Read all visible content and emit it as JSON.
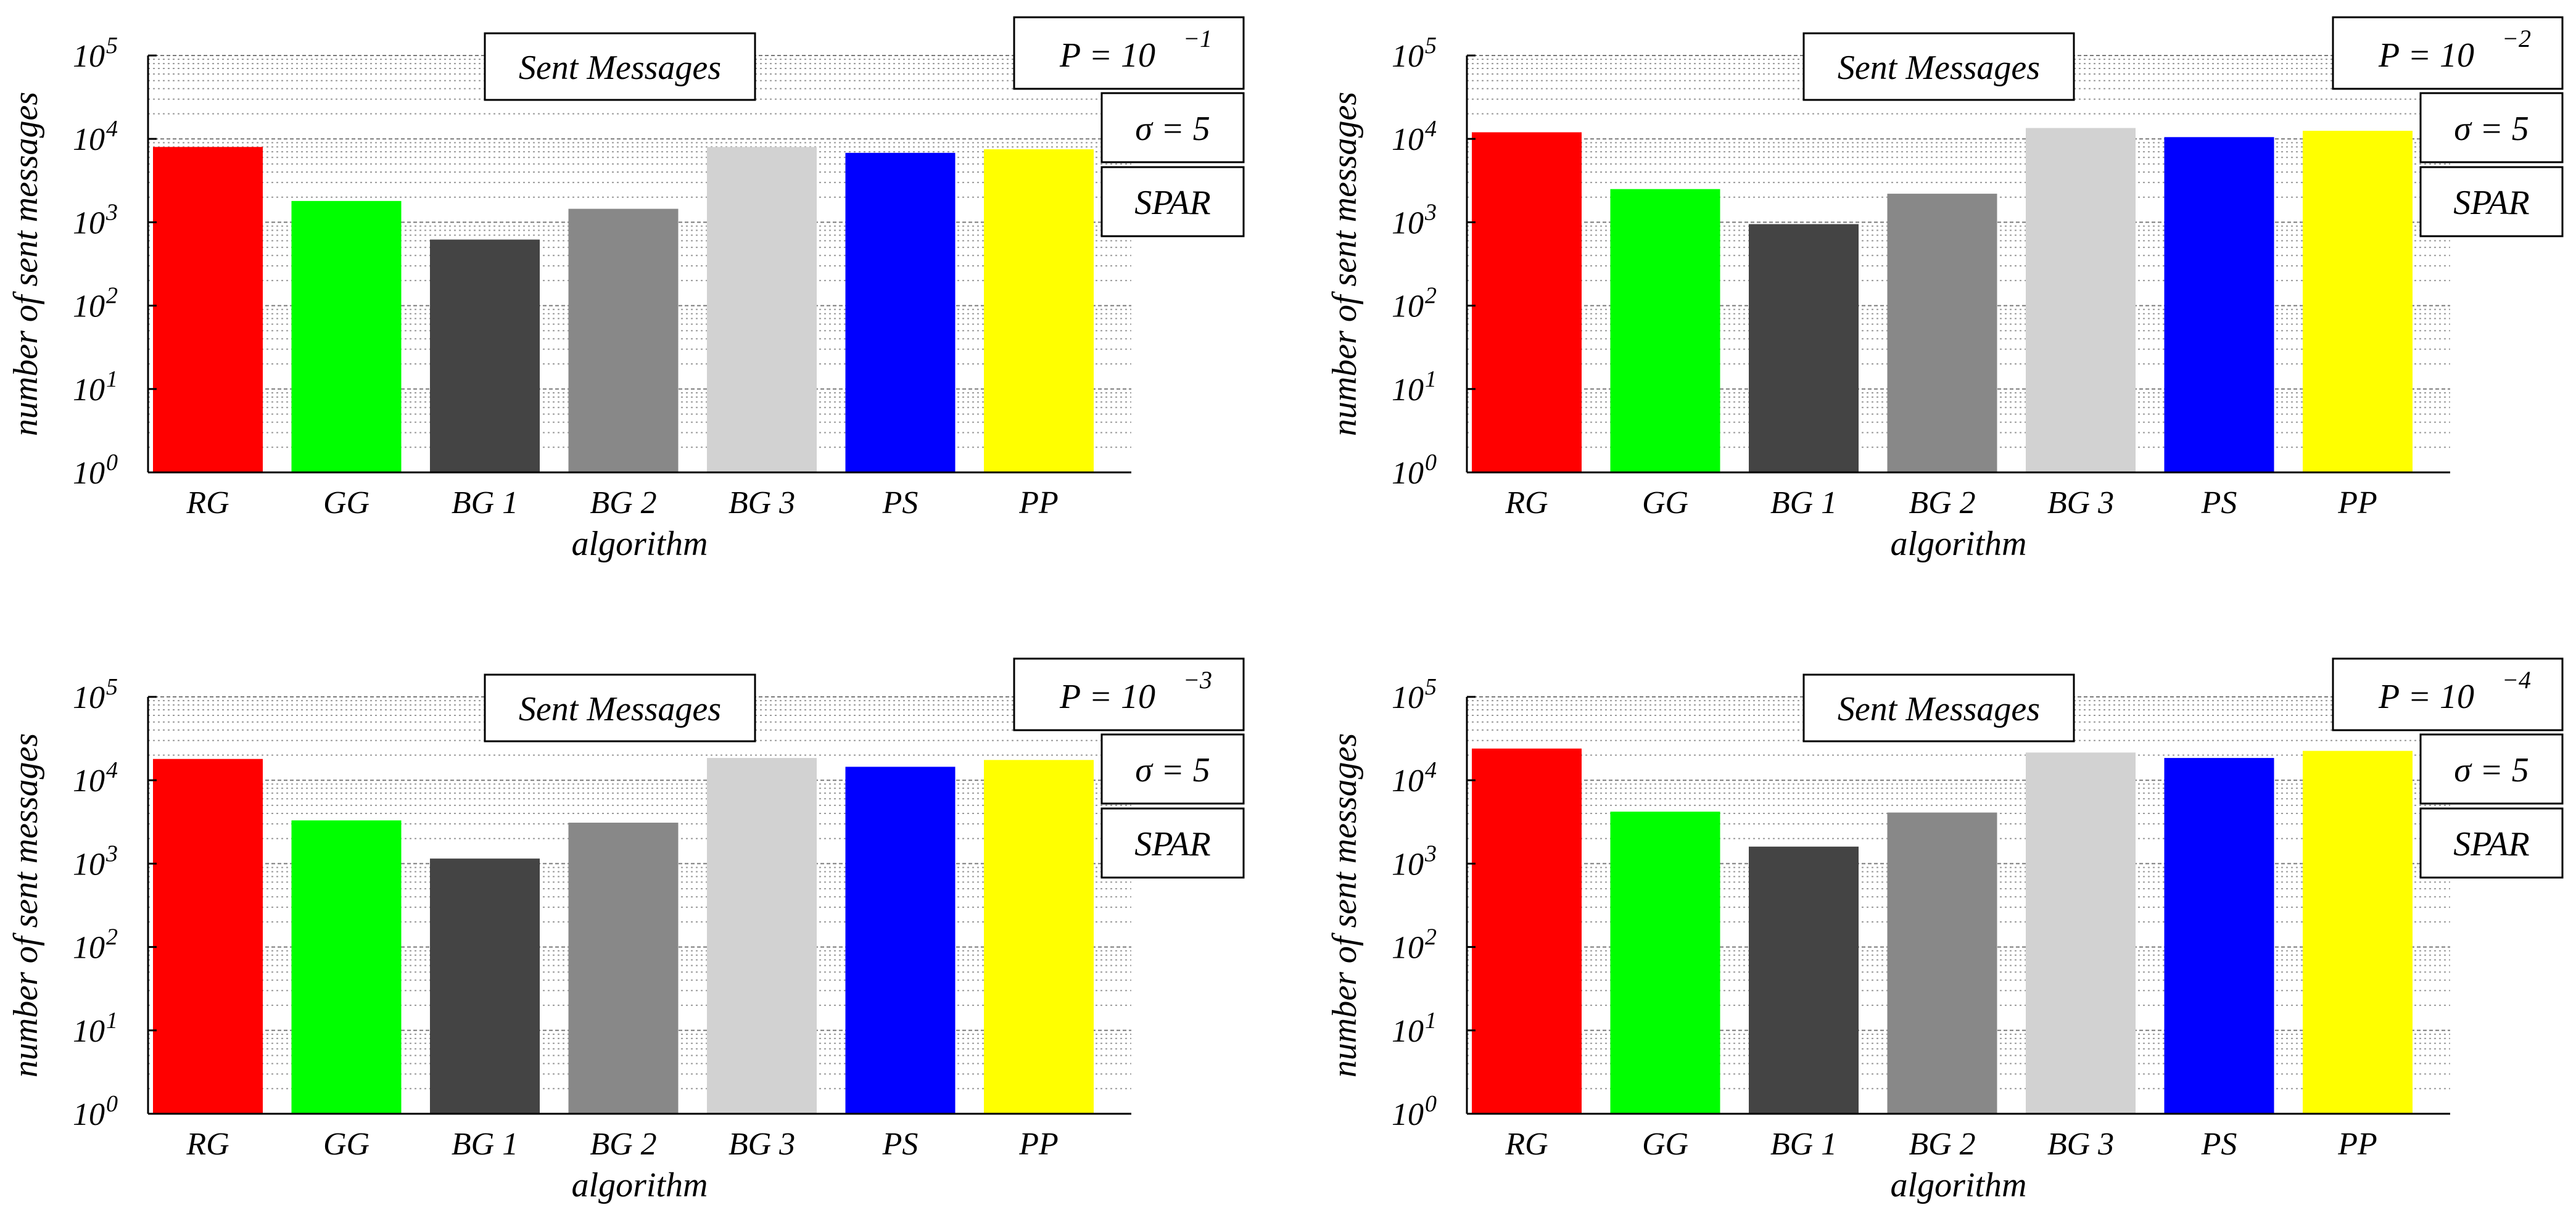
{
  "figure_title": "Sent Messages vs. algorithm",
  "colors": {
    "RG": "#ff0000",
    "GG": "#00ff00",
    "BG 1": "#444444",
    "BG 2": "#888888",
    "BG 3": "#d2d2d2",
    "PS": "#0000ff",
    "PP": "#ffff00",
    "grid": "#9a9a9a",
    "axis": "#000000"
  },
  "chart_data": [
    {
      "type": "bar",
      "title": "Sent Messages",
      "xlabel": "algorithm",
      "ylabel": "number of sent messages",
      "yscale": "log",
      "ylim": [
        1,
        100000
      ],
      "yticks": [
        "10^0",
        "10^1",
        "10^2",
        "10^3",
        "10^4",
        "10^5"
      ],
      "categories": [
        "RG",
        "GG",
        "BG 1",
        "BG 2",
        "BG 3",
        "PS",
        "PP"
      ],
      "values": [
        8000,
        1800,
        620,
        1450,
        8000,
        6800,
        7500
      ],
      "annotations": {
        "p_label": "P = 10",
        "p_exp": "−1",
        "sigma_label": "σ = 5",
        "model_label": "SPAR"
      },
      "grid": true
    },
    {
      "type": "bar",
      "title": "Sent Messages",
      "xlabel": "algorithm",
      "ylabel": "number of sent messages",
      "yscale": "log",
      "ylim": [
        1,
        100000
      ],
      "yticks": [
        "10^0",
        "10^1",
        "10^2",
        "10^3",
        "10^4",
        "10^5"
      ],
      "categories": [
        "RG",
        "GG",
        "BG 1",
        "BG 2",
        "BG 3",
        "PS",
        "PP"
      ],
      "values": [
        12000,
        2500,
        950,
        2200,
        13500,
        10500,
        12500
      ],
      "annotations": {
        "p_label": "P = 10",
        "p_exp": "−2",
        "sigma_label": "σ = 5",
        "model_label": "SPAR"
      },
      "grid": true
    },
    {
      "type": "bar",
      "title": "Sent Messages",
      "xlabel": "algorithm",
      "ylabel": "number of sent messages",
      "yscale": "log",
      "ylim": [
        1,
        100000
      ],
      "yticks": [
        "10^0",
        "10^1",
        "10^2",
        "10^3",
        "10^4",
        "10^5"
      ],
      "categories": [
        "RG",
        "GG",
        "BG 1",
        "BG 2",
        "BG 3",
        "PS",
        "PP"
      ],
      "values": [
        18000,
        3300,
        1150,
        3100,
        18500,
        14500,
        17500
      ],
      "annotations": {
        "p_label": "P = 10",
        "p_exp": "−3",
        "sigma_label": "σ = 5",
        "model_label": "SPAR"
      },
      "grid": true
    },
    {
      "type": "bar",
      "title": "Sent Messages",
      "xlabel": "algorithm",
      "ylabel": "number of sent messages",
      "yscale": "log",
      "ylim": [
        1,
        100000
      ],
      "yticks": [
        "10^0",
        "10^1",
        "10^2",
        "10^3",
        "10^4",
        "10^5"
      ],
      "categories": [
        "RG",
        "GG",
        "BG 1",
        "BG 2",
        "BG 3",
        "PS",
        "PP"
      ],
      "values": [
        24000,
        4200,
        1600,
        4100,
        21500,
        18500,
        22500
      ],
      "annotations": {
        "p_label": "P = 10",
        "p_exp": "−4",
        "sigma_label": "σ = 5",
        "model_label": "SPAR"
      },
      "grid": true
    }
  ]
}
